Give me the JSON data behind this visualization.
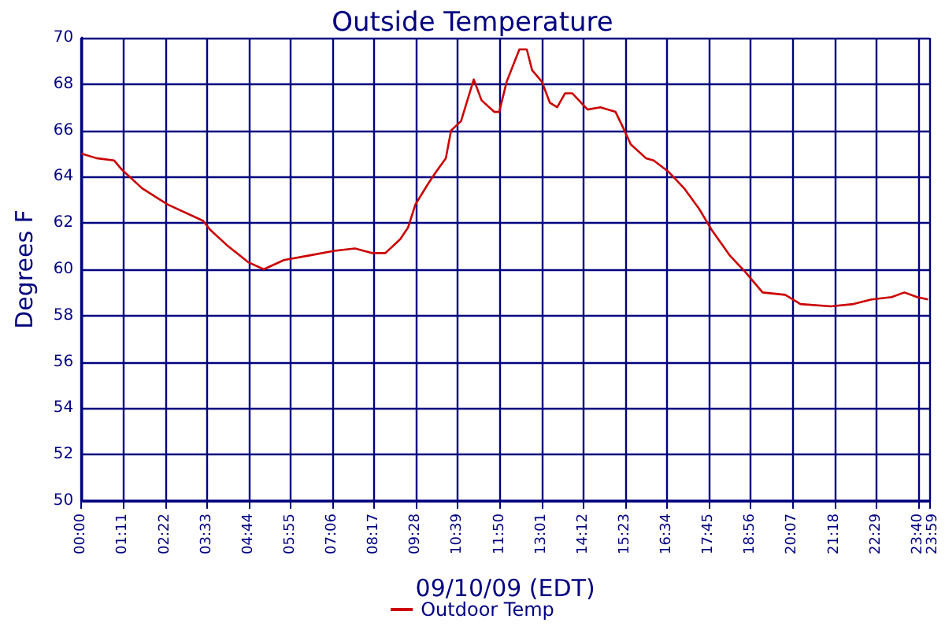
{
  "chart_data": {
    "type": "line",
    "title": "Outside Temperature",
    "xlabel": "09/10/09 (EDT)",
    "ylabel": "Degrees F",
    "x": [
      0,
      0.43,
      0.93,
      1.15,
      1.72,
      2.44,
      3.44,
      3.65,
      4.15,
      4.73,
      5.16,
      5.73,
      6.45,
      7.16,
      7.74,
      8.24,
      8.6,
      9.02,
      9.24,
      9.45,
      9.81,
      10.03,
      10.31,
      10.46,
      10.74,
      11.1,
      11.32,
      11.68,
      11.82,
      12.03,
      12.39,
      12.6,
      12.75,
      13.03,
      13.25,
      13.46,
      13.68,
      13.89,
      14.32,
      14.68,
      15.11,
      15.33,
      15.54,
      15.97,
      16.19,
      16.62,
      17.05,
      17.48,
      17.83,
      18.34,
      18.77,
      19.27,
      19.91,
      20.34,
      21.2,
      21.84,
      22.35,
      22.92,
      23.28,
      23.64,
      23.95
    ],
    "series": [
      {
        "name": "Outdoor Temp",
        "color": "#cc0000",
        "values": [
          65.0,
          64.8,
          64.7,
          64.3,
          63.5,
          62.8,
          62.1,
          61.7,
          61.0,
          60.3,
          60.0,
          60.4,
          60.6,
          60.8,
          60.9,
          60.7,
          60.7,
          61.3,
          61.8,
          62.8,
          63.7,
          64.2,
          64.8,
          66.0,
          66.4,
          68.2,
          67.3,
          66.8,
          66.8,
          68.1,
          69.5,
          69.5,
          68.6,
          68.1,
          67.2,
          67.0,
          67.6,
          67.6,
          66.9,
          67.0,
          66.8,
          66.1,
          65.4,
          64.8,
          64.7,
          64.2,
          63.5,
          62.6,
          61.7,
          60.6,
          59.9,
          59.0,
          58.9,
          58.5,
          58.4,
          58.5,
          58.7,
          58.8,
          59.0,
          58.8,
          58.7
        ]
      }
    ],
    "xlim": [
      0,
      23.983
    ],
    "xticks": [
      {
        "value": 0,
        "label": "00:00"
      },
      {
        "value": 1.1833,
        "label": "01:11"
      },
      {
        "value": 2.3667,
        "label": "02:22"
      },
      {
        "value": 3.55,
        "label": "03:33"
      },
      {
        "value": 4.7333,
        "label": "04:44"
      },
      {
        "value": 5.9167,
        "label": "05:55"
      },
      {
        "value": 7.1,
        "label": "07:06"
      },
      {
        "value": 8.2833,
        "label": "08:17"
      },
      {
        "value": 9.4667,
        "label": "09:28"
      },
      {
        "value": 10.65,
        "label": "10:39"
      },
      {
        "value": 11.8333,
        "label": "11:50"
      },
      {
        "value": 13.0167,
        "label": "13:01"
      },
      {
        "value": 14.2,
        "label": "14:12"
      },
      {
        "value": 15.3833,
        "label": "15:23"
      },
      {
        "value": 16.5667,
        "label": "16:34"
      },
      {
        "value": 17.75,
        "label": "17:45"
      },
      {
        "value": 18.9333,
        "label": "18:56"
      },
      {
        "value": 20.1167,
        "label": "20:07"
      },
      {
        "value": 21.3,
        "label": "21:18"
      },
      {
        "value": 22.4833,
        "label": "22:29"
      },
      {
        "value": 23.6667,
        "label": "23:40"
      },
      {
        "value": 23.983,
        "label": "23:59"
      }
    ],
    "ylim": [
      50,
      70
    ],
    "yticks": [
      50,
      52,
      54,
      56,
      58,
      60,
      62,
      64,
      66,
      68,
      70
    ],
    "grid": true,
    "legend": "bottom",
    "marker": "none",
    "line_style": "solid"
  }
}
